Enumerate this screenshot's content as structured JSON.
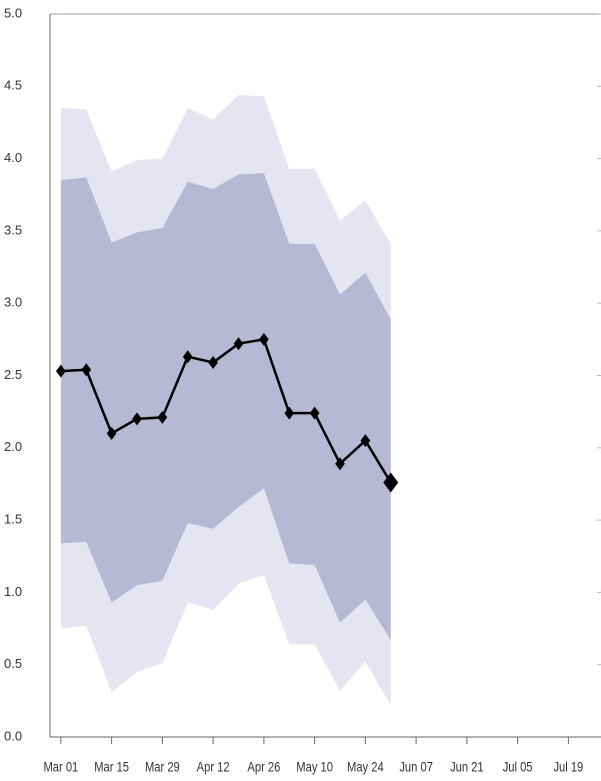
{
  "chart_data": {
    "type": "band-line",
    "x": [
      "Mar 01",
      "Mar 08",
      "Mar 15",
      "Mar 22",
      "Mar 29",
      "Apr 05",
      "Apr 12",
      "Apr 19",
      "Apr 26",
      "May 03",
      "May 10",
      "May 17",
      "May 24",
      "May 31"
    ],
    "bands": [
      {
        "color": "#e4e5f0",
        "lower": [
          0.75,
          0.77,
          0.31,
          0.45,
          0.51,
          0.93,
          0.88,
          1.06,
          1.12,
          0.64,
          0.64,
          0.32,
          0.52,
          0.22
        ],
        "upper": [
          4.35,
          4.34,
          3.91,
          3.99,
          4.0,
          4.35,
          4.27,
          4.44,
          4.43,
          3.93,
          3.93,
          3.57,
          3.71,
          3.41
        ]
      },
      {
        "color": "#b7b9d4",
        "lower": [
          1.34,
          1.35,
          0.93,
          1.05,
          1.08,
          1.48,
          1.44,
          1.59,
          1.72,
          1.2,
          1.19,
          0.79,
          0.95,
          0.67
        ],
        "upper": [
          3.85,
          3.87,
          3.42,
          3.49,
          3.52,
          3.84,
          3.79,
          3.89,
          3.9,
          3.41,
          3.41,
          3.06,
          3.21,
          2.89
        ]
      }
    ],
    "series": [
      {
        "color": "#000000",
        "values": [
          2.53,
          2.54,
          2.1,
          2.2,
          2.21,
          2.63,
          2.59,
          2.72,
          2.75,
          2.24,
          2.24,
          1.89,
          2.05,
          1.76
        ]
      }
    ],
    "xlim": [
      "Feb 26",
      "Jul 28"
    ],
    "xticks": [
      "Mar 01",
      "Mar 15",
      "Mar 29",
      "Apr 12",
      "Apr 26",
      "May 10",
      "May 24",
      "Jun 07",
      "Jun 21",
      "Jul 05",
      "Jul 19"
    ],
    "ylim": [
      0,
      5
    ],
    "yticks": [
      {
        "value": 0,
        "label": "0.0"
      },
      0.5,
      {
        "value": 1,
        "label": "1.0"
      },
      1.5,
      {
        "value": 2,
        "label": "2.0"
      },
      2.5,
      {
        "value": 3,
        "label": "3.0"
      },
      3.5,
      {
        "value": 4,
        "label": "4.0"
      },
      4.5,
      {
        "value": 5,
        "label": "5.0"
      }
    ]
  }
}
